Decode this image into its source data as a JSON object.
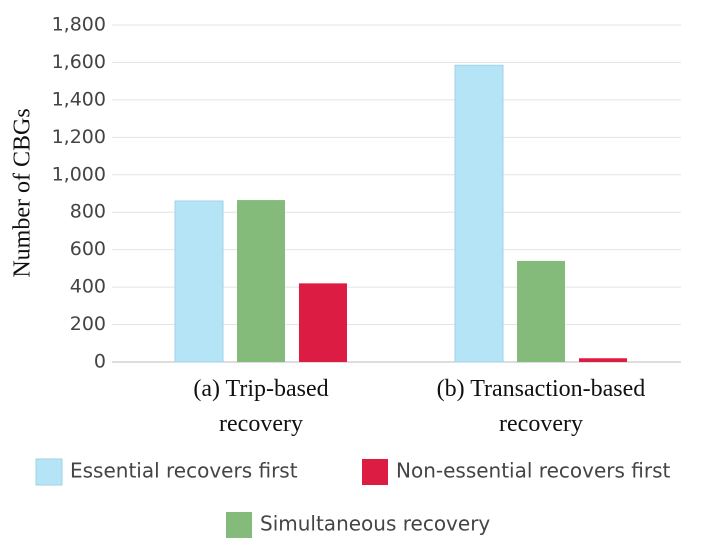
{
  "chart_data": {
    "type": "bar",
    "y_label": "Number of CBGs",
    "categories": [
      "(a) Trip-based recovery",
      "(b) Transaction-based recovery"
    ],
    "series": [
      {
        "name": "Essential recovers first",
        "color": "#b5e4f6",
        "values": [
          860,
          1585
        ]
      },
      {
        "name": "Simultaneous recovery",
        "color": "#84bb7b",
        "values": [
          865,
          540
        ]
      },
      {
        "name": "Non-essential recovers first",
        "color": "#dc1c43",
        "values": [
          420,
          20
        ]
      }
    ],
    "ylim": [
      0,
      1800
    ],
    "yticks": [
      0,
      200,
      400,
      600,
      800,
      {
        "value": 1000,
        "label": "1,000"
      },
      {
        "value": 1200,
        "label": "1,200"
      },
      {
        "value": 1400,
        "label": "1,400"
      },
      {
        "value": 1600,
        "label": "1,600"
      },
      {
        "value": 1800,
        "label": "1,800"
      }
    ],
    "grid": true
  }
}
